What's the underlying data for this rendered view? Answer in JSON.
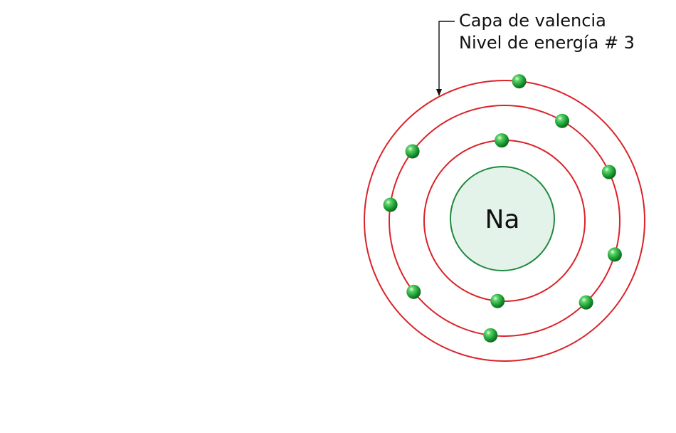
{
  "nucleus": {
    "symbol": "Na",
    "fill": "#e4f3ea",
    "stroke": "#1e8a3e"
  },
  "annotation": {
    "line1": "Capa de valencia",
    "line2": "Nivel de energía # 3"
  },
  "colors": {
    "orbit": "#d9232a",
    "electron": "#1aa33a",
    "arrow": "#111111"
  },
  "shells": [
    {
      "name": "shell-1",
      "electrons": 2,
      "angles": [
        -92,
        95
      ]
    },
    {
      "name": "shell-2",
      "electrons": 8,
      "angles": [
        -60,
        -25,
        17,
        45,
        97,
        142,
        188,
        217
      ]
    },
    {
      "name": "shell-3",
      "electrons": 1,
      "angles": [
        -84
      ]
    }
  ]
}
